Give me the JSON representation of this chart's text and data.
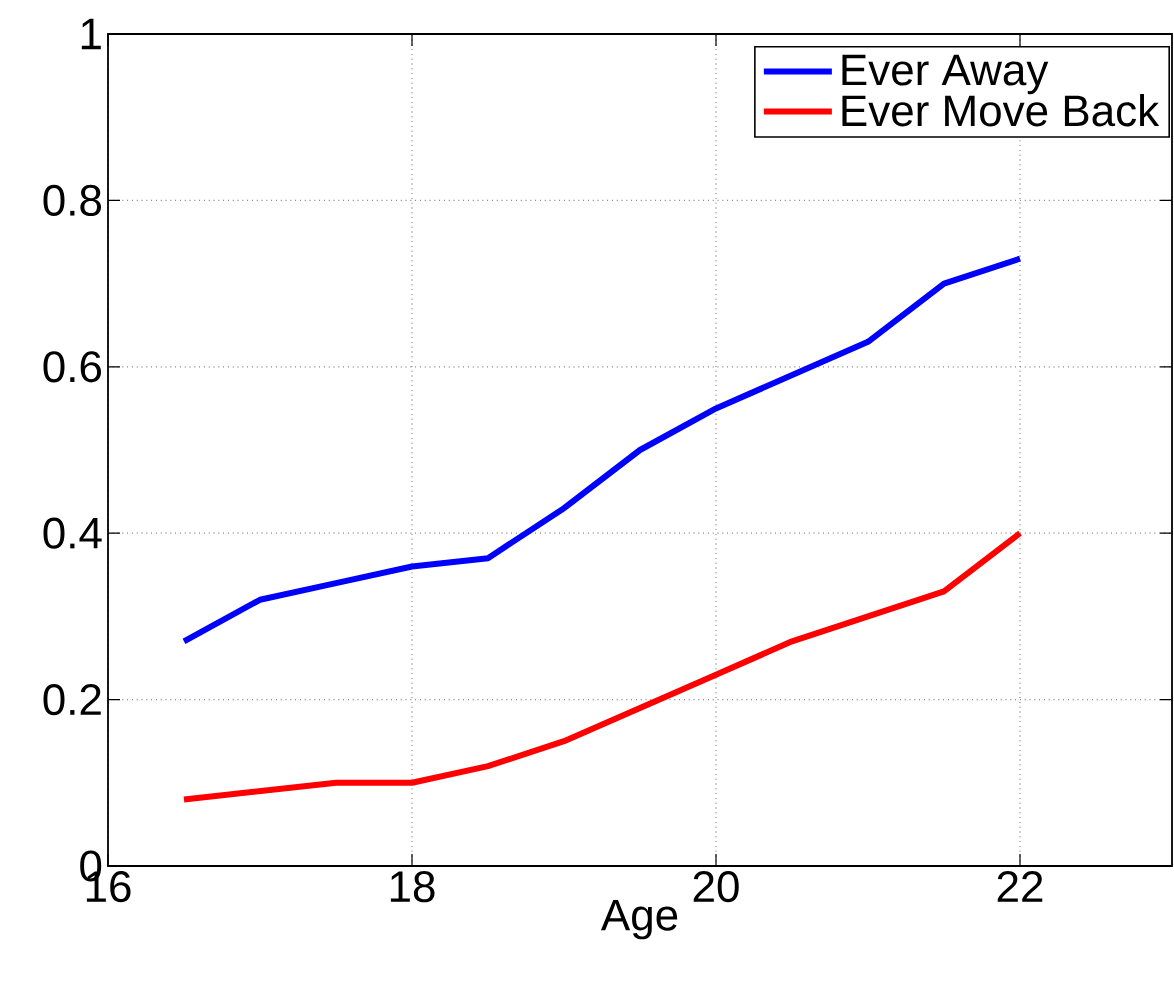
{
  "chart_data": {
    "type": "line",
    "xlabel": "Age",
    "x": [
      16.5,
      17,
      17.5,
      18,
      18.5,
      19,
      19.5,
      20,
      20.5,
      21,
      21.5,
      22
    ],
    "series": [
      {
        "name": "Ever Away",
        "color": "#0000ff",
        "values": [
          0.27,
          0.32,
          0.34,
          0.36,
          0.37,
          0.43,
          0.5,
          0.55,
          0.59,
          0.63,
          0.7,
          0.73
        ]
      },
      {
        "name": "Ever Move Back",
        "color": "#ff0000",
        "values": [
          0.08,
          0.09,
          0.1,
          0.1,
          0.12,
          0.15,
          0.19,
          0.23,
          0.27,
          0.3,
          0.33,
          0.4
        ]
      }
    ],
    "xlim": [
      16,
      23
    ],
    "ylim": [
      0,
      1
    ],
    "xticks": [
      16,
      18,
      20,
      22
    ],
    "yticks": [
      0,
      0.2,
      0.4,
      0.6,
      0.8,
      1
    ],
    "grid": true,
    "legend": "top right"
  }
}
